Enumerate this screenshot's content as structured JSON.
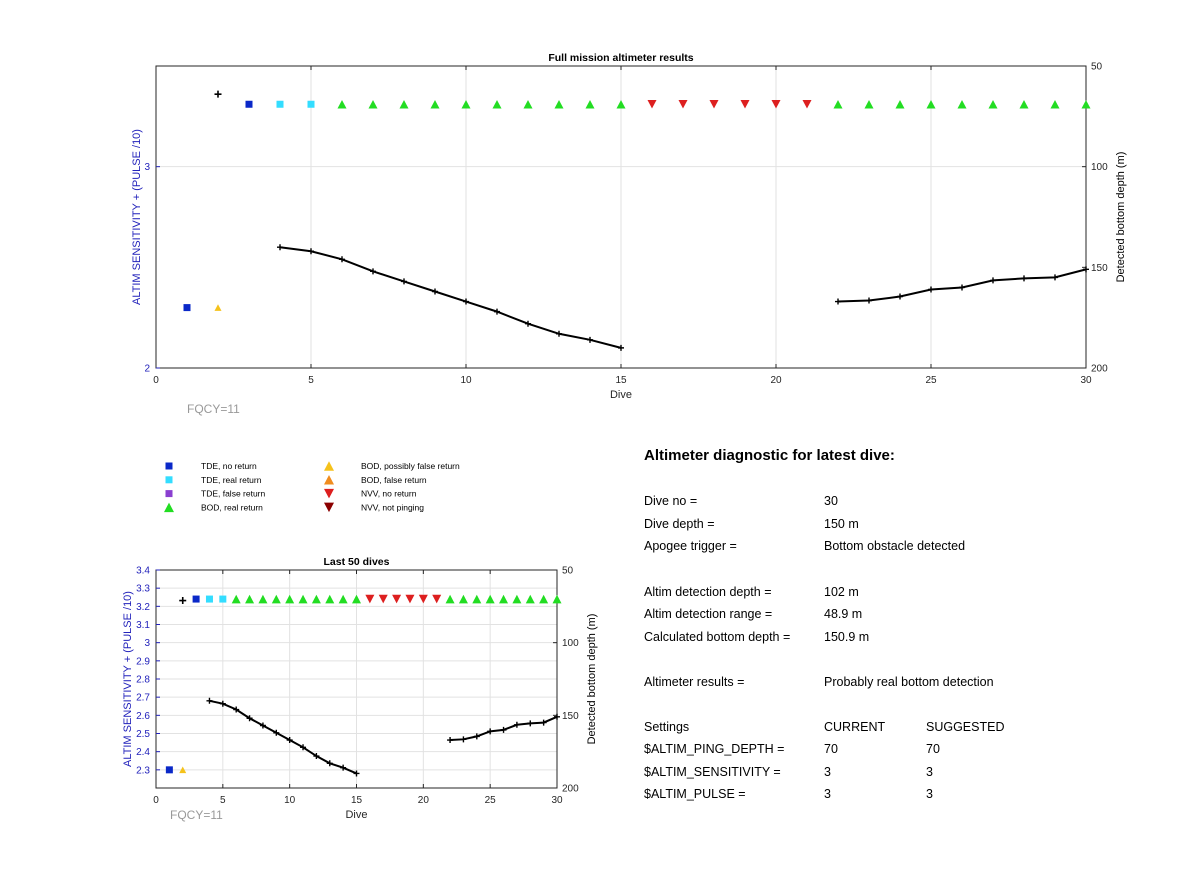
{
  "colors": {
    "tde_no_return": "#0a28c8",
    "tde_real_return": "#33ddff",
    "tde_false_return": "#8a3fd0",
    "bod_real_return": "#22dd22",
    "bod_possibly_false_return": "#f5c21b",
    "bod_false_return": "#f08c1e",
    "nvv_no_return": "#dd1f1f",
    "nvv_not_pinging": "#8b0000",
    "left_axis": "#2222bb",
    "right_axis": "#000000",
    "bottom_line": "#000000"
  },
  "legend": {
    "items": [
      {
        "label": "TDE, no return",
        "marker": "square",
        "color_key": "tde_no_return"
      },
      {
        "label": "TDE, real return",
        "marker": "square",
        "color_key": "tde_real_return"
      },
      {
        "label": "TDE, false return",
        "marker": "square",
        "color_key": "tde_false_return"
      },
      {
        "label": "BOD, real return",
        "marker": "triangle-up",
        "color_key": "bod_real_return"
      },
      {
        "label": "BOD, possibly false return",
        "marker": "triangle-up",
        "color_key": "bod_possibly_false_return"
      },
      {
        "label": "BOD, false return",
        "marker": "triangle-up",
        "color_key": "bod_false_return"
      },
      {
        "label": "NVV, no return",
        "marker": "triangle-down",
        "color_key": "nvv_no_return"
      },
      {
        "label": "NVV, not pinging",
        "marker": "triangle-down",
        "color_key": "nvv_not_pinging"
      }
    ]
  },
  "diagnostic": {
    "title": "Altimeter diagnostic for latest dive:",
    "rows": [
      {
        "label": "Dive no =",
        "value": "30"
      },
      {
        "label": "Dive depth =",
        "value": "150 m"
      },
      {
        "label": "Apogee trigger =",
        "value": "Bottom obstacle detected"
      },
      {
        "label": "Altim detection depth =",
        "value": "102 m"
      },
      {
        "label": "Altim detection range =",
        "value": "48.9 m"
      },
      {
        "label": "Calculated bottom depth =",
        "value": "150.9 m"
      },
      {
        "label": "Altimeter results =",
        "value": "Probably real bottom detection"
      }
    ],
    "settings": {
      "header": {
        "label": "Settings",
        "current": "CURRENT",
        "suggested": "SUGGESTED"
      },
      "rows": [
        {
          "label": "$ALTIM_PING_DEPTH =",
          "current": "70",
          "suggested": "70"
        },
        {
          "label": "$ALTIM_SENSITIVITY =",
          "current": "3",
          "suggested": "3"
        },
        {
          "label": "$ALTIM_PULSE =",
          "current": "3",
          "suggested": "3"
        }
      ]
    }
  },
  "chart_data": [
    {
      "type": "scatter",
      "title": "Full mission altimeter results",
      "xlabel": "Dive",
      "ylabel_left": "ALTIM SENSITIVITY + (PULSE /10)",
      "ylabel_right": "Detected bottom depth (m)",
      "footnote": "FQCY=11",
      "xlim": [
        0,
        30
      ],
      "xticks": [
        0,
        5,
        10,
        15,
        20,
        25,
        30
      ],
      "ylim_left": [
        2,
        3.5
      ],
      "yticks_left": [
        2,
        3
      ],
      "ylim_right": [
        200,
        50
      ],
      "yticks_right": [
        50,
        100,
        150,
        200
      ],
      "grid": true,
      "settings_series": {
        "name": "ALTIM SENSITIVITY + (PULSE /10)",
        "x": [
          1,
          2
        ],
        "y": [
          2.3,
          2.3
        ],
        "marker_keys": [
          "tde_no_return",
          "bod_possibly_false_return"
        ]
      },
      "ping_marker_series": {
        "y_depth_m": 69,
        "x": [
          3,
          4,
          5,
          6,
          7,
          8,
          9,
          10,
          11,
          12,
          13,
          14,
          15,
          16,
          17,
          18,
          19,
          20,
          21,
          22,
          23,
          24,
          25,
          26,
          27,
          28,
          29,
          30
        ],
        "marker_keys": [
          "tde_no_return",
          "tde_real_return",
          "tde_real_return",
          "bod_real_return",
          "bod_real_return",
          "bod_real_return",
          "bod_real_return",
          "bod_real_return",
          "bod_real_return",
          "bod_real_return",
          "bod_real_return",
          "bod_real_return",
          "bod_real_return",
          "nvv_no_return",
          "nvv_no_return",
          "nvv_no_return",
          "nvv_no_return",
          "nvv_no_return",
          "nvv_no_return",
          "bod_real_return",
          "bod_real_return",
          "bod_real_return",
          "bod_real_return",
          "bod_real_return",
          "bod_real_return",
          "bod_real_return",
          "bod_real_return",
          "bod_real_return"
        ]
      },
      "plus_point": {
        "x": 2,
        "y_depth_m": 64
      },
      "bottom_depth_segments": [
        {
          "x": [
            4,
            5,
            6,
            7,
            8,
            9,
            10,
            11,
            12,
            13,
            14,
            15
          ],
          "y": [
            140,
            142,
            146,
            152,
            157,
            162,
            167,
            172,
            178,
            183,
            186,
            190
          ]
        },
        {
          "x": [
            22,
            23,
            24,
            25,
            26,
            27,
            28,
            29,
            30
          ],
          "y": [
            167,
            166.5,
            164.5,
            161,
            160,
            156.5,
            155.5,
            155,
            151
          ]
        }
      ]
    },
    {
      "type": "scatter",
      "title": "Last 50 dives",
      "xlabel": "Dive",
      "ylabel_left": "ALTIM SENSITIVITY + (PULSE /10)",
      "ylabel_right": "Detected bottom depth (m)",
      "footnote": "FQCY=11",
      "xlim": [
        0,
        30
      ],
      "xticks": [
        0,
        5,
        10,
        15,
        20,
        25,
        30
      ],
      "ylim_left": [
        2.2,
        3.4
      ],
      "yticks_left": [
        2.3,
        2.4,
        2.5,
        2.6,
        2.7,
        2.8,
        2.9,
        3,
        3.1,
        3.2,
        3.3,
        3.4
      ],
      "ylim_right": [
        200,
        50
      ],
      "yticks_right": [
        50,
        100,
        150,
        200
      ],
      "grid": true,
      "settings_series": {
        "name": "ALTIM SENSITIVITY + (PULSE /10)",
        "x": [
          1,
          2
        ],
        "y": [
          2.3,
          2.3
        ],
        "marker_keys": [
          "tde_no_return",
          "bod_possibly_false_return"
        ]
      },
      "ping_marker_series": {
        "y_depth_m": 70,
        "x": [
          3,
          4,
          5,
          6,
          7,
          8,
          9,
          10,
          11,
          12,
          13,
          14,
          15,
          16,
          17,
          18,
          19,
          20,
          21,
          22,
          23,
          24,
          25,
          26,
          27,
          28,
          29,
          30
        ],
        "marker_keys": [
          "tde_no_return",
          "tde_real_return",
          "tde_real_return",
          "bod_real_return",
          "bod_real_return",
          "bod_real_return",
          "bod_real_return",
          "bod_real_return",
          "bod_real_return",
          "bod_real_return",
          "bod_real_return",
          "bod_real_return",
          "bod_real_return",
          "nvv_no_return",
          "nvv_no_return",
          "nvv_no_return",
          "nvv_no_return",
          "nvv_no_return",
          "nvv_no_return",
          "bod_real_return",
          "bod_real_return",
          "bod_real_return",
          "bod_real_return",
          "bod_real_return",
          "bod_real_return",
          "bod_real_return",
          "bod_real_return",
          "bod_real_return"
        ]
      },
      "plus_point": {
        "x": 2,
        "y_depth_m": 71
      },
      "bottom_depth_segments": [
        {
          "x": [
            4,
            5,
            6,
            7,
            8,
            9,
            10,
            11,
            12,
            13,
            14,
            15
          ],
          "y": [
            140,
            142,
            146,
            152,
            157,
            162,
            167,
            172,
            178,
            183,
            186,
            190
          ]
        },
        {
          "x": [
            22,
            23,
            24,
            25,
            26,
            27,
            28,
            29,
            30
          ],
          "y": [
            167,
            166.5,
            164.5,
            161,
            160,
            156.5,
            155.5,
            155,
            151
          ]
        }
      ]
    }
  ]
}
